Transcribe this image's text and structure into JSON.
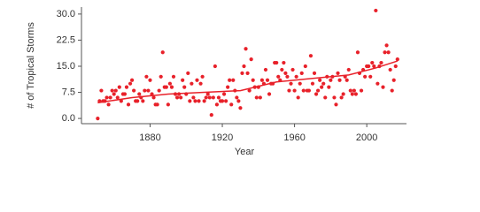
{
  "chart_data": {
    "type": "scatter",
    "y_label": "# of Tropical Storms",
    "x_label": "Year",
    "points": {
      "color": "#e8212a",
      "x": [
        1851,
        1852,
        1853,
        1854,
        1855,
        1856,
        1857,
        1858,
        1859,
        1860,
        1861,
        1862,
        1863,
        1864,
        1865,
        1866,
        1867,
        1868,
        1869,
        1870,
        1871,
        1872,
        1873,
        1874,
        1875,
        1876,
        1877,
        1878,
        1879,
        1880,
        1881,
        1882,
        1883,
        1884,
        1885,
        1886,
        1887,
        1888,
        1889,
        1890,
        1891,
        1892,
        1893,
        1894,
        1895,
        1896,
        1897,
        1898,
        1899,
        1900,
        1901,
        1902,
        1903,
        1904,
        1905,
        1906,
        1907,
        1908,
        1909,
        1910,
        1911,
        1912,
        1913,
        1914,
        1915,
        1916,
        1917,
        1918,
        1919,
        1920,
        1921,
        1922,
        1923,
        1924,
        1925,
        1926,
        1927,
        1928,
        1929,
        1930,
        1931,
        1932,
        1933,
        1934,
        1935,
        1936,
        1937,
        1938,
        1939,
        1940,
        1941,
        1942,
        1943,
        1944,
        1945,
        1946,
        1947,
        1948,
        1949,
        1950,
        1951,
        1952,
        1953,
        1954,
        1955,
        1956,
        1957,
        1958,
        1959,
        1960,
        1961,
        1962,
        1963,
        1964,
        1965,
        1966,
        1967,
        1968,
        1969,
        1970,
        1971,
        1972,
        1973,
        1974,
        1975,
        1976,
        1977,
        1978,
        1979,
        1980,
        1981,
        1982,
        1983,
        1984,
        1985,
        1986,
        1987,
        1988,
        1989,
        1990,
        1991,
        1992,
        1993,
        1994,
        1995,
        1996,
        1997,
        1998,
        1999,
        2000,
        2001,
        2002,
        2003,
        2004,
        2005,
        2006,
        2007,
        2008,
        2009,
        2010,
        2011,
        2012,
        2013,
        2014,
        2015,
        2016,
        2017
      ],
      "values": [
        0,
        5,
        8,
        5,
        5,
        6,
        4,
        6,
        8,
        7,
        8,
        6,
        9,
        5,
        7,
        7,
        9,
        4,
        10,
        11,
        8,
        5,
        5,
        7,
        6,
        5,
        8,
        12,
        8,
        11,
        7,
        6,
        4,
        4,
        8,
        12,
        19,
        9,
        9,
        4,
        10,
        9,
        12,
        7,
        6,
        7,
        6,
        11,
        9,
        7,
        13,
        5,
        10,
        6,
        5,
        11,
        5,
        10,
        12,
        5,
        6,
        7,
        6,
        1,
        6,
        15,
        4,
        6,
        5,
        5,
        7,
        5,
        9,
        11,
        4,
        11,
        8,
        6,
        5,
        3,
        13,
        15,
        20,
        13,
        8,
        17,
        11,
        9,
        6,
        9,
        6,
        11,
        10,
        14,
        11,
        7,
        10,
        10,
        16,
        16,
        12,
        11,
        14,
        16,
        13,
        12,
        8,
        10,
        14,
        8,
        12,
        6,
        10,
        13,
        8,
        15,
        8,
        8,
        18,
        10,
        13,
        7,
        8,
        11,
        9,
        10,
        6,
        12,
        9,
        11,
        12,
        6,
        4,
        13,
        11,
        6,
        7,
        12,
        11,
        14,
        8,
        7,
        8,
        7,
        19,
        13,
        8,
        14,
        12,
        15,
        15,
        12,
        16,
        15,
        31,
        10,
        15,
        16,
        9,
        19,
        21,
        19,
        14,
        8,
        11,
        15,
        17
      ]
    },
    "trend": {
      "color": "#e8212a",
      "x": [
        1851,
        1870,
        1890,
        1910,
        1930,
        1950,
        1970,
        1990,
        2005,
        2017
      ],
      "values": [
        4.5,
        6,
        7,
        7.5,
        8,
        10.5,
        11.5,
        12.5,
        14.5,
        16.5
      ]
    },
    "xlim": [
      1842,
      2022
    ],
    "xticks": [
      1880,
      1920,
      1960,
      2000
    ],
    "ylim": [
      -1.5,
      32
    ],
    "yticks": [
      {
        "value": 0,
        "label": "0.0"
      },
      {
        "value": 7.5,
        "label": "7.5"
      },
      {
        "value": 15,
        "label": "15.0"
      },
      {
        "value": 22.5,
        "label": "22.5"
      },
      {
        "value": 30,
        "label": "30.0"
      }
    ]
  }
}
